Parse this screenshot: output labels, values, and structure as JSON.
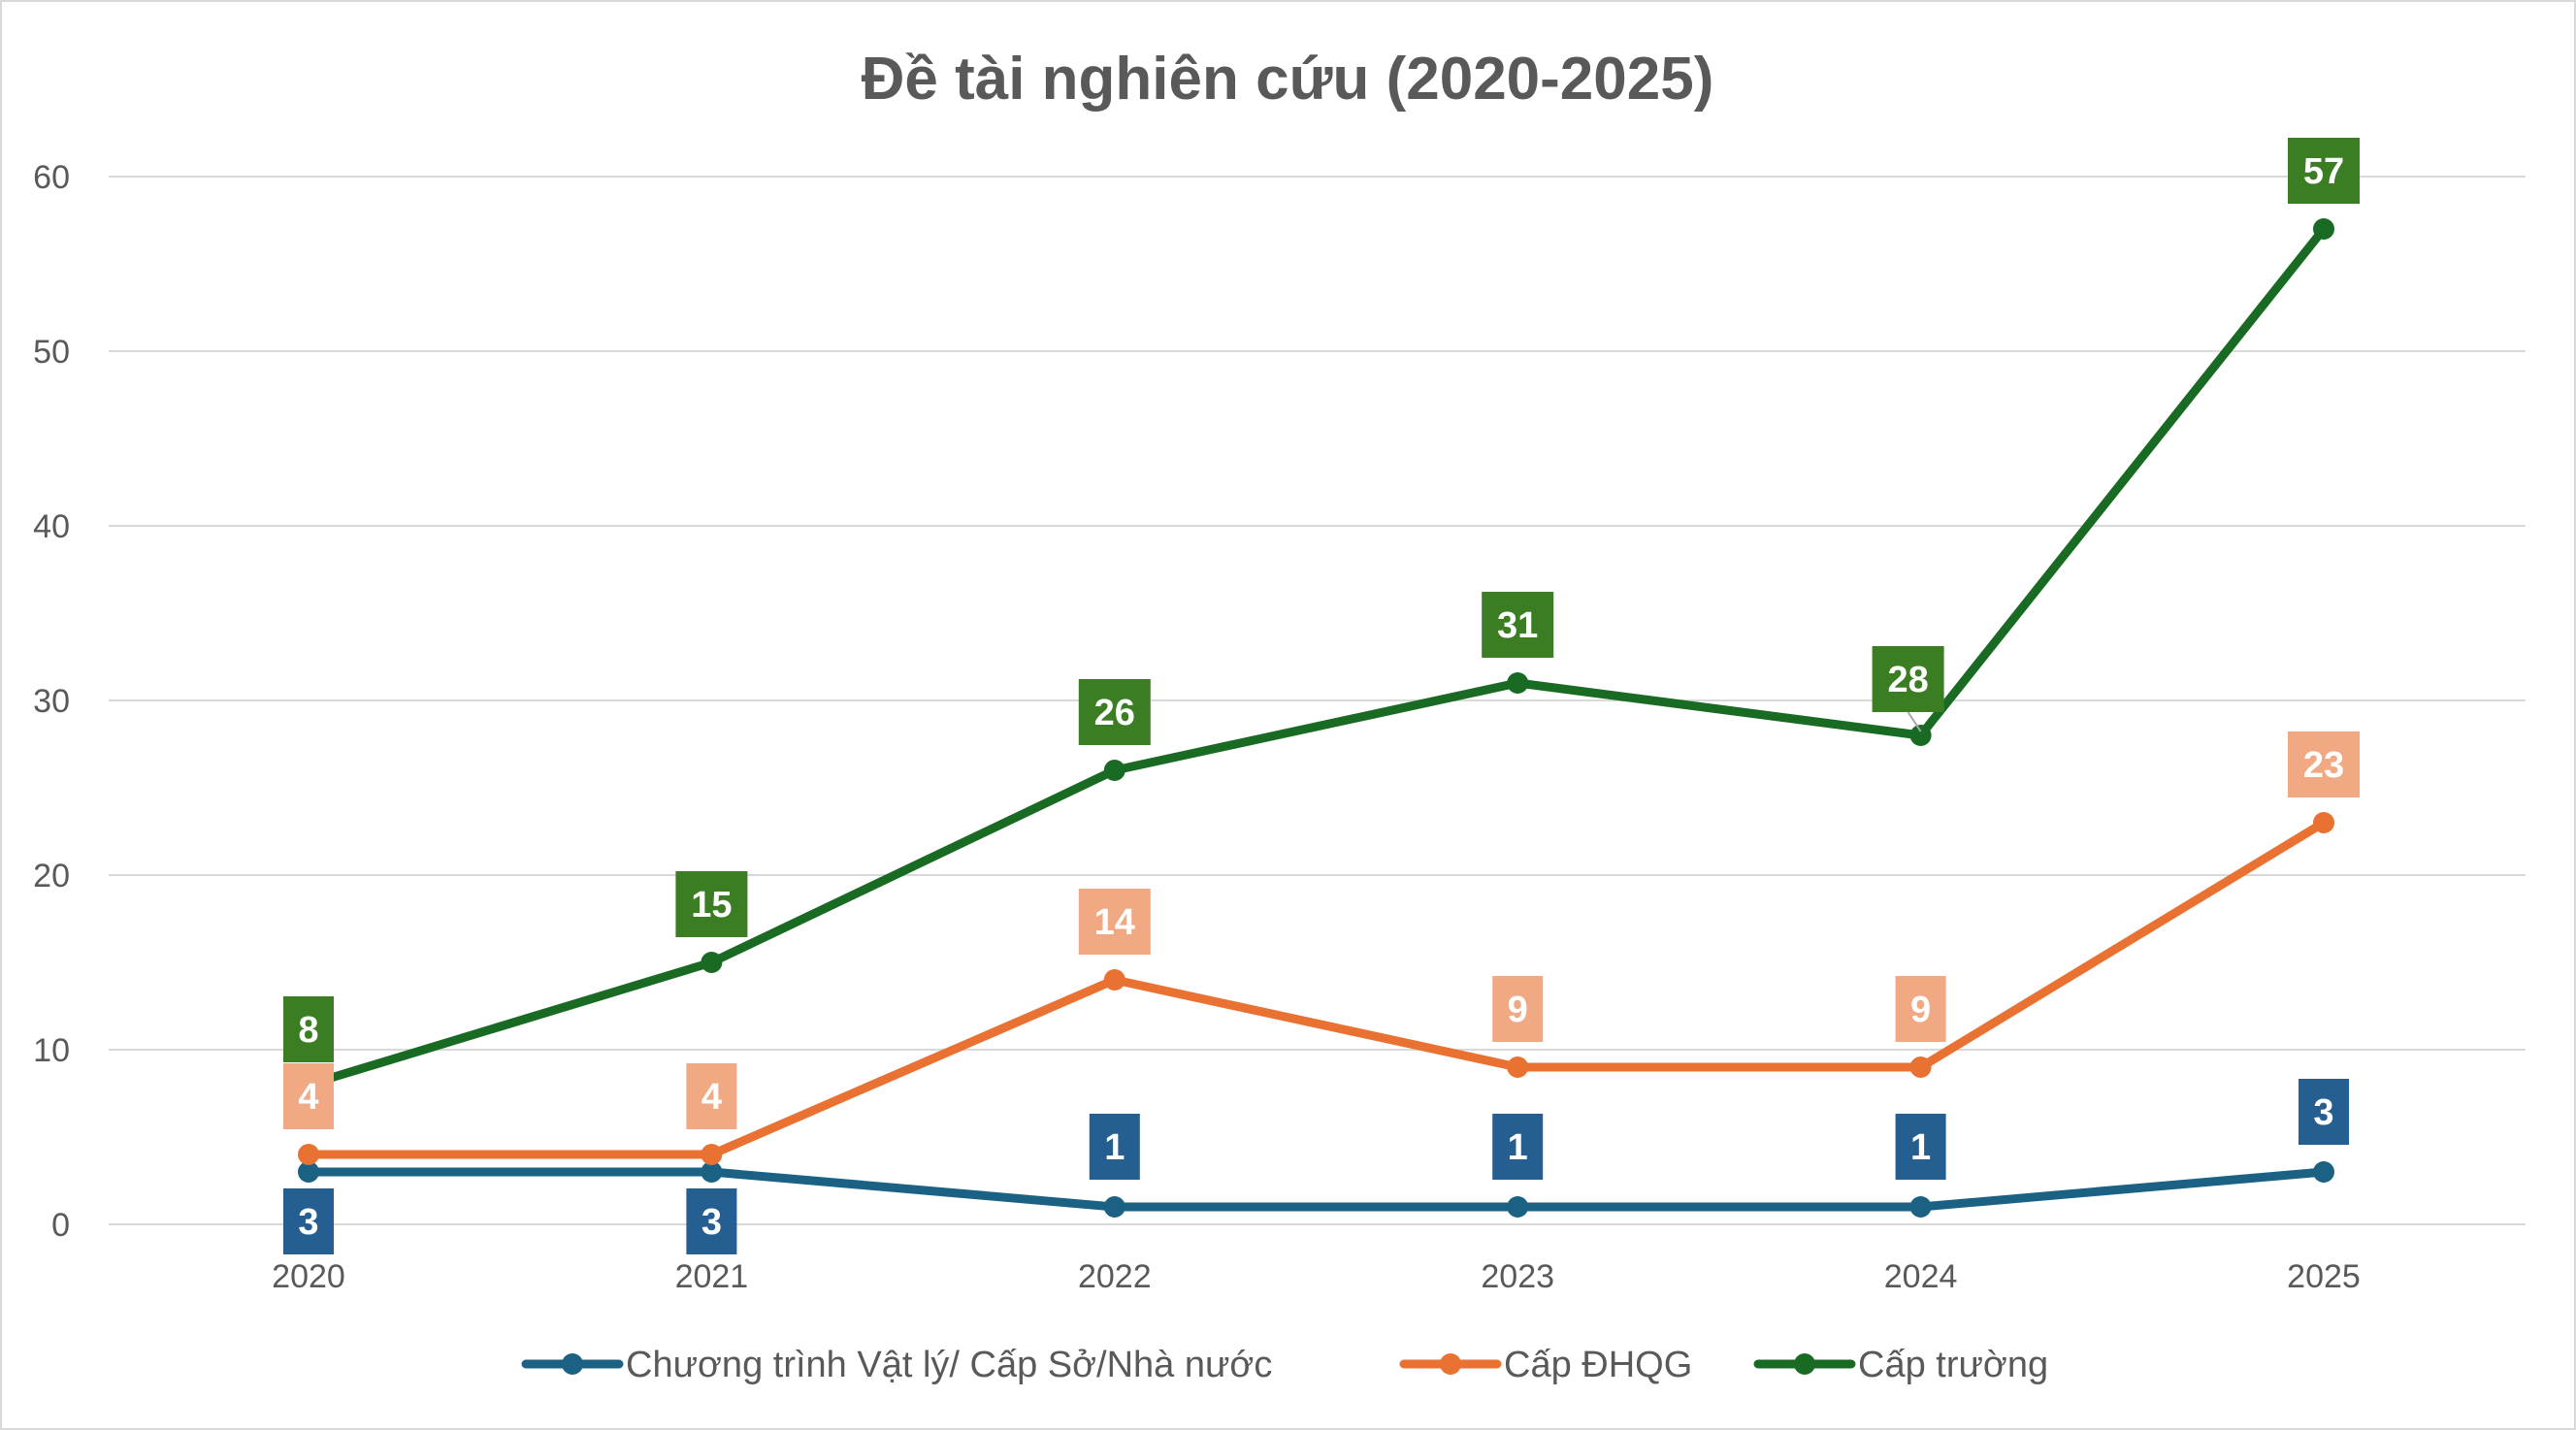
{
  "chart_data": {
    "type": "line",
    "title": "Đề tài nghiên cứu (2020-2025)",
    "xlabel": "",
    "ylabel": "",
    "categories": [
      "2020",
      "2021",
      "2022",
      "2023",
      "2024",
      "2025"
    ],
    "ylim": [
      0,
      60
    ],
    "yticks": [
      0,
      10,
      20,
      30,
      40,
      50,
      60
    ],
    "grid": true,
    "legend_position": "bottom",
    "data_labels": true,
    "series": [
      {
        "name": "Chương trình Vật lý/ Cấp Sở/Nhà nước",
        "color": "#1a6184",
        "label_bg": "#255e91",
        "label_position": "mixed",
        "values": [
          3,
          3,
          1,
          1,
          1,
          3
        ]
      },
      {
        "name": "Cấp ĐHQG",
        "color": "#e97132",
        "label_bg": "#f1a983",
        "label_position": "above",
        "values": [
          4,
          4,
          14,
          9,
          9,
          23
        ]
      },
      {
        "name": "Cấp trường",
        "color": "#196b24",
        "label_bg": "#3b7d23",
        "label_position": "above",
        "values": [
          8,
          15,
          26,
          31,
          28,
          57
        ]
      }
    ]
  }
}
